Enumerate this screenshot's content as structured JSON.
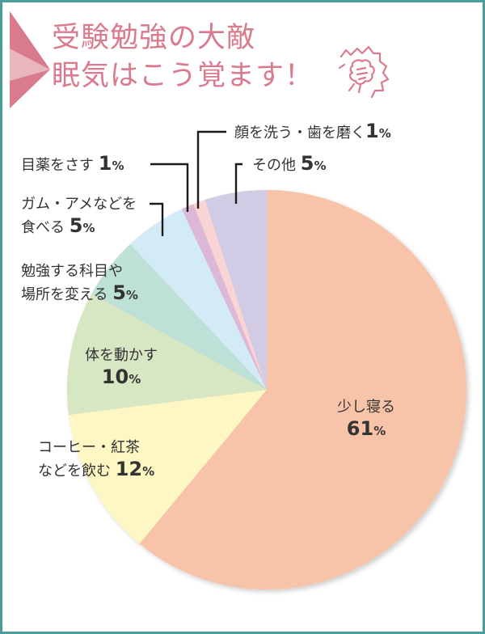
{
  "header": {
    "title_line1": "受験勉強の大敵",
    "title_line2": "眠気はこう覚ます！",
    "accent_color": "#d97b8c",
    "icon": "fist-burst-icon"
  },
  "frame": {
    "border_color": "#4a9e9a"
  },
  "chart_data": {
    "type": "pie",
    "title": "受験勉強の大敵 眠気はこう覚ます！",
    "start_angle_deg": 0,
    "direction": "clockwise",
    "categories": [
      "少し寝る",
      "コーヒー・紅茶などを飲む",
      "体を動かす",
      "勉強する科目や場所を変える",
      "ガム・アメなどを食べる",
      "目薬をさす",
      "顔を洗う・歯を磨く",
      "その他"
    ],
    "values": [
      61,
      12,
      10,
      5,
      5,
      1,
      1,
      5
    ],
    "unit": "%",
    "colors": [
      "#f7c4aa",
      "#fdf7c4",
      "#d7e7c3",
      "#bde1d7",
      "#d3eaf7",
      "#dbb8d8",
      "#f8d4d4",
      "#d2cbe6"
    ]
  },
  "labels": {
    "sleep": {
      "text": "少し寝る",
      "value": "61",
      "unit": "%"
    },
    "coffee": {
      "line1": "コーヒー・紅茶",
      "line2": "などを飲む",
      "value": "12",
      "unit": "%"
    },
    "move": {
      "text": "体を動かす",
      "value": "10",
      "unit": "%"
    },
    "change": {
      "line1": "勉強する科目や",
      "line2": "場所を変える",
      "value": "5",
      "unit": "%"
    },
    "gum": {
      "line1": "ガム・アメなどを",
      "line2": "食べる",
      "value": "5",
      "unit": "%"
    },
    "eyedrops": {
      "text": "目薬をさす",
      "value": "1",
      "unit": "%"
    },
    "wash": {
      "text": "顔を洗う・歯を磨く",
      "value": "1",
      "unit": "%"
    },
    "other": {
      "text": "その他",
      "value": "5",
      "unit": "%"
    }
  }
}
